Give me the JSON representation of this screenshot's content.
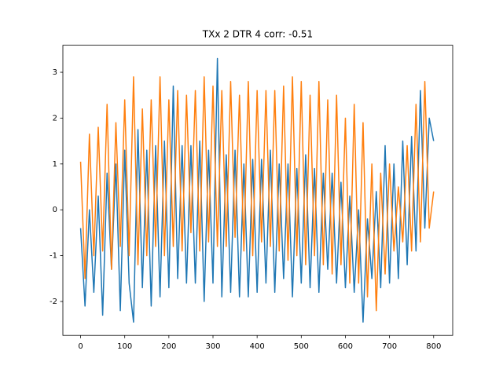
{
  "chart_data": {
    "type": "line",
    "title": "TXx 2 DTR 4 corr: -0.51",
    "x": [
      0,
      10,
      20,
      30,
      40,
      50,
      60,
      70,
      80,
      90,
      100,
      110,
      120,
      130,
      140,
      150,
      160,
      170,
      180,
      190,
      200,
      210,
      220,
      230,
      240,
      250,
      260,
      270,
      280,
      290,
      300,
      310,
      320,
      330,
      340,
      350,
      360,
      370,
      380,
      390,
      400,
      410,
      420,
      430,
      440,
      450,
      460,
      470,
      480,
      490,
      500,
      510,
      520,
      530,
      540,
      550,
      560,
      570,
      580,
      590,
      600,
      610,
      620,
      630,
      640,
      650,
      660,
      670,
      680,
      690,
      700,
      710,
      720,
      730,
      740,
      750,
      760,
      770,
      780,
      790,
      800
    ],
    "series": [
      {
        "color": "#1f77b4",
        "values": [
          -0.4,
          -2.1,
          0.0,
          -1.8,
          0.3,
          -2.3,
          0.8,
          -1.3,
          1.0,
          -2.2,
          1.3,
          -1.6,
          -2.45,
          1.75,
          -1.7,
          1.3,
          -2.1,
          1.4,
          -1.9,
          1.5,
          -1.7,
          2.7,
          -1.5,
          1.4,
          -1.6,
          1.4,
          -1.6,
          1.5,
          -2.0,
          1.3,
          -1.6,
          3.3,
          -1.9,
          1.2,
          -1.8,
          1.3,
          -1.9,
          1.0,
          -1.9,
          1.1,
          -1.8,
          1.1,
          -1.6,
          1.3,
          -1.8,
          1.0,
          -1.5,
          1.0,
          -1.9,
          0.9,
          -1.6,
          1.2,
          -1.7,
          0.9,
          -1.8,
          0.8,
          -1.3,
          0.8,
          -1.6,
          0.6,
          -1.7,
          0.3,
          -1.8,
          0.0,
          -2.45,
          -0.2,
          -1.5,
          0.4,
          -1.7,
          1.4,
          -1.6,
          1.0,
          -1.5,
          1.5,
          -1.2,
          1.6,
          -0.9,
          2.6,
          -0.4,
          2.0,
          1.5
        ]
      },
      {
        "color": "#ff7f0e",
        "values": [
          1.05,
          -1.5,
          1.65,
          -1.0,
          1.8,
          -0.9,
          2.3,
          -1.3,
          1.9,
          -0.8,
          2.4,
          -1.0,
          2.9,
          -1.2,
          2.2,
          -1.0,
          2.4,
          -0.8,
          2.9,
          -1.0,
          2.4,
          -0.8,
          2.6,
          -0.9,
          2.5,
          -0.5,
          2.6,
          -0.9,
          2.9,
          -0.7,
          2.7,
          -0.8,
          2.6,
          -0.8,
          2.8,
          -0.6,
          2.5,
          -0.9,
          2.8,
          -1.0,
          2.6,
          -0.7,
          2.6,
          -0.8,
          2.6,
          -0.9,
          2.7,
          -1.1,
          2.9,
          -1.0,
          2.8,
          -1.2,
          2.5,
          -1.0,
          2.8,
          -1.2,
          2.4,
          -1.4,
          2.5,
          -1.2,
          2.0,
          -1.6,
          2.3,
          -1.6,
          1.9,
          -1.9,
          1.0,
          -2.2,
          0.8,
          -1.4,
          1.0,
          -0.9,
          0.5,
          -0.7,
          1.4,
          -0.9,
          2.3,
          -0.7,
          2.8,
          -0.4,
          0.4
        ]
      }
    ],
    "xlim": [
      -40.15,
      843.15
    ],
    "xticks": [
      0,
      100,
      200,
      300,
      400,
      500,
      600,
      700,
      800
    ],
    "ylim": [
      -2.74,
      3.59
    ],
    "yticks": [
      -2,
      -1,
      0,
      1,
      2,
      3
    ]
  }
}
